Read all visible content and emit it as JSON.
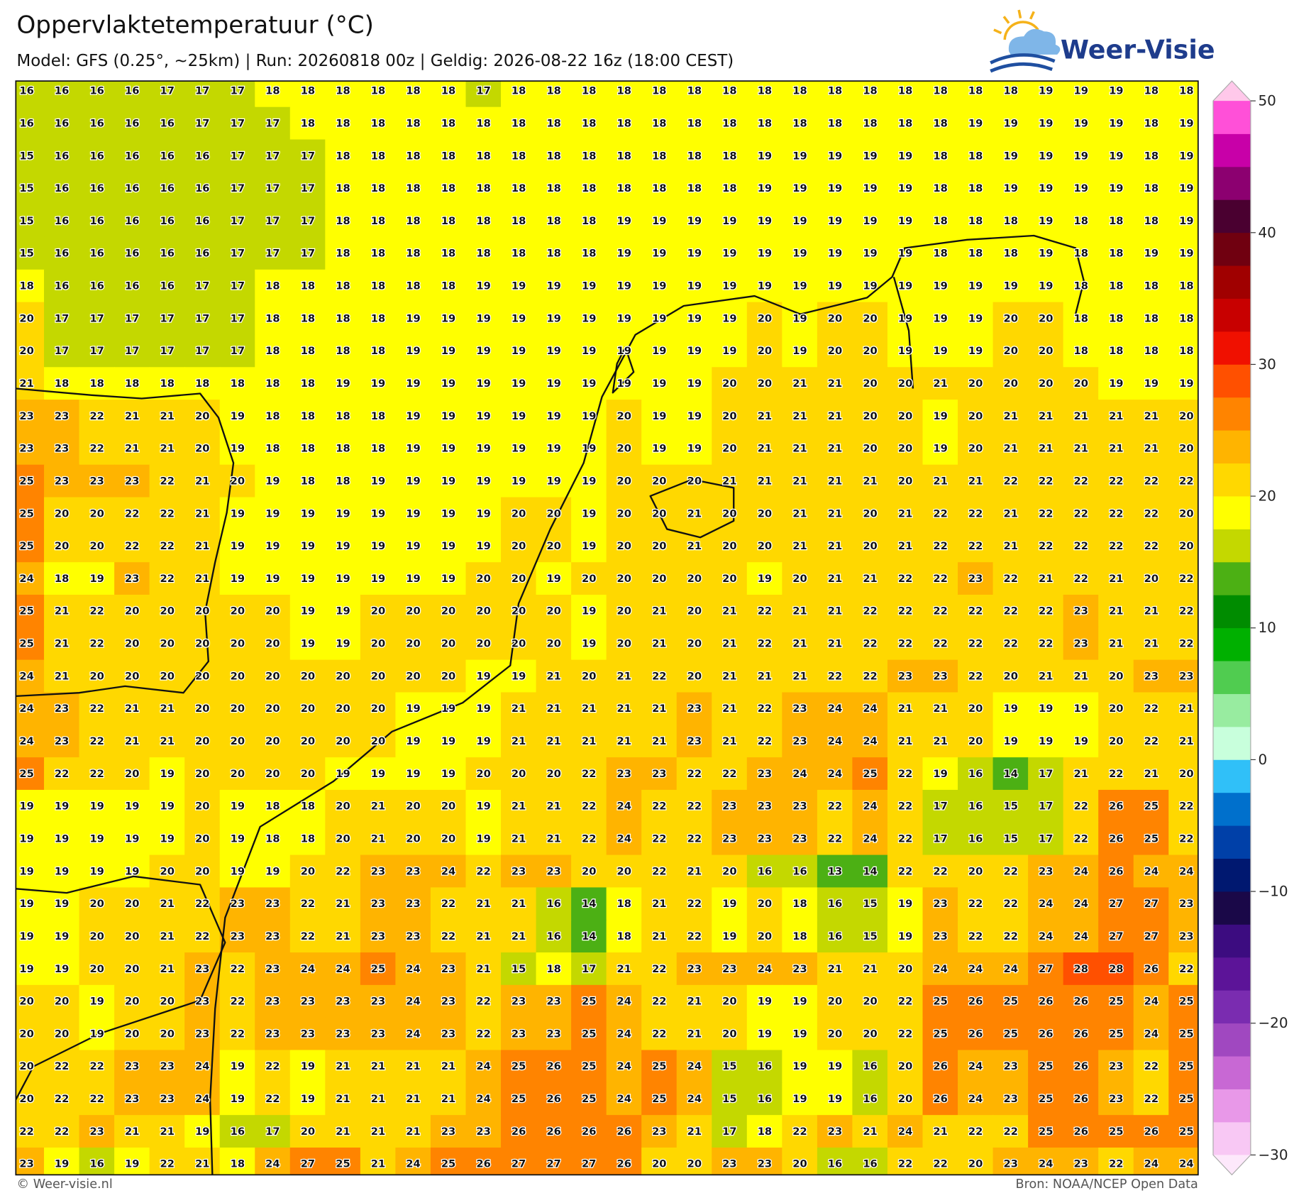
{
  "header": {
    "title": "Oppervlaktetemperatuur (°C)",
    "subtitle": "Model: GFS (0.25°, ~25km)  |  Run: 20260818 00z  |  Geldig: 2026-08-22 16z (18:00 CEST)"
  },
  "logo": {
    "text": "Weer-Visie"
  },
  "map": {
    "values": [
      [
        16,
        16,
        16,
        16,
        17,
        17,
        17,
        18,
        18,
        18,
        18,
        18,
        18,
        17,
        18,
        18,
        18,
        18,
        18,
        18,
        18,
        18,
        18,
        18,
        18,
        18,
        18,
        18,
        18,
        19,
        19,
        19,
        18,
        18
      ],
      [
        16,
        16,
        16,
        16,
        16,
        17,
        17,
        17,
        18,
        18,
        18,
        18,
        18,
        18,
        18,
        18,
        18,
        18,
        18,
        18,
        18,
        18,
        18,
        18,
        18,
        18,
        18,
        19,
        19,
        19,
        19,
        19,
        18,
        19
      ],
      [
        15,
        16,
        16,
        16,
        16,
        16,
        17,
        17,
        17,
        18,
        18,
        18,
        18,
        18,
        18,
        18,
        18,
        18,
        18,
        18,
        18,
        19,
        19,
        19,
        19,
        19,
        18,
        18,
        19,
        19,
        19,
        19,
        18,
        19
      ],
      [
        15,
        16,
        16,
        16,
        16,
        16,
        17,
        17,
        17,
        18,
        18,
        18,
        18,
        18,
        18,
        18,
        18,
        18,
        18,
        18,
        18,
        19,
        19,
        19,
        19,
        19,
        18,
        18,
        19,
        19,
        19,
        19,
        18,
        19
      ],
      [
        15,
        16,
        16,
        16,
        16,
        16,
        17,
        17,
        17,
        18,
        18,
        18,
        18,
        18,
        18,
        18,
        18,
        19,
        19,
        19,
        19,
        19,
        19,
        19,
        19,
        19,
        18,
        18,
        18,
        19,
        18,
        18,
        18,
        19
      ],
      [
        15,
        16,
        16,
        16,
        16,
        16,
        17,
        17,
        17,
        18,
        18,
        18,
        18,
        18,
        18,
        18,
        18,
        19,
        19,
        19,
        19,
        19,
        19,
        19,
        19,
        19,
        18,
        18,
        18,
        19,
        18,
        18,
        19,
        19
      ],
      [
        18,
        16,
        16,
        16,
        16,
        17,
        17,
        18,
        18,
        18,
        18,
        18,
        18,
        19,
        19,
        19,
        19,
        19,
        19,
        19,
        19,
        19,
        19,
        19,
        19,
        19,
        19,
        19,
        19,
        19,
        18,
        18,
        18,
        18
      ],
      [
        20,
        17,
        17,
        17,
        17,
        17,
        17,
        18,
        18,
        18,
        18,
        19,
        19,
        19,
        19,
        19,
        19,
        19,
        19,
        19,
        19,
        20,
        19,
        20,
        20,
        19,
        19,
        19,
        20,
        20,
        18,
        18,
        18,
        18
      ],
      [
        20,
        17,
        17,
        17,
        17,
        17,
        17,
        18,
        18,
        18,
        18,
        19,
        19,
        19,
        19,
        19,
        19,
        19,
        19,
        19,
        19,
        20,
        19,
        20,
        20,
        19,
        19,
        19,
        20,
        20,
        18,
        18,
        18,
        18
      ],
      [
        21,
        18,
        18,
        18,
        18,
        18,
        18,
        18,
        18,
        19,
        19,
        19,
        19,
        19,
        19,
        19,
        19,
        19,
        19,
        19,
        20,
        20,
        21,
        21,
        20,
        20,
        21,
        20,
        20,
        20,
        20,
        19,
        19,
        19
      ],
      [
        23,
        23,
        22,
        21,
        21,
        20,
        19,
        18,
        18,
        18,
        18,
        19,
        19,
        19,
        19,
        19,
        19,
        20,
        19,
        19,
        20,
        21,
        21,
        21,
        20,
        20,
        19,
        20,
        21,
        21,
        21,
        21,
        21,
        20
      ],
      [
        23,
        23,
        22,
        21,
        21,
        20,
        19,
        18,
        18,
        18,
        18,
        19,
        19,
        19,
        19,
        19,
        19,
        20,
        19,
        19,
        20,
        21,
        21,
        21,
        20,
        20,
        19,
        20,
        21,
        21,
        21,
        21,
        21,
        20
      ],
      [
        25,
        23,
        23,
        23,
        22,
        21,
        20,
        19,
        18,
        18,
        19,
        19,
        19,
        19,
        19,
        19,
        19,
        20,
        20,
        20,
        21,
        21,
        21,
        21,
        21,
        20,
        21,
        21,
        22,
        22,
        22,
        22,
        22,
        22
      ],
      [
        25,
        20,
        20,
        22,
        22,
        21,
        19,
        19,
        19,
        19,
        19,
        19,
        19,
        19,
        20,
        20,
        19,
        20,
        20,
        21,
        20,
        20,
        21,
        21,
        20,
        21,
        22,
        22,
        21,
        22,
        22,
        22,
        22,
        20
      ],
      [
        25,
        20,
        20,
        22,
        22,
        21,
        19,
        19,
        19,
        19,
        19,
        19,
        19,
        19,
        20,
        20,
        19,
        20,
        20,
        21,
        20,
        20,
        21,
        21,
        20,
        21,
        22,
        22,
        21,
        22,
        22,
        22,
        22,
        20
      ],
      [
        24,
        18,
        19,
        23,
        22,
        21,
        19,
        19,
        19,
        19,
        19,
        19,
        19,
        20,
        20,
        19,
        20,
        20,
        20,
        20,
        20,
        19,
        20,
        21,
        21,
        22,
        22,
        23,
        22,
        21,
        22,
        21,
        20,
        22
      ],
      [
        25,
        21,
        22,
        20,
        20,
        20,
        20,
        20,
        19,
        19,
        20,
        20,
        20,
        20,
        20,
        20,
        19,
        20,
        21,
        20,
        21,
        22,
        21,
        21,
        22,
        22,
        22,
        22,
        22,
        22,
        23,
        21,
        21,
        22
      ],
      [
        25,
        21,
        22,
        20,
        20,
        20,
        20,
        20,
        19,
        19,
        20,
        20,
        20,
        20,
        20,
        20,
        19,
        20,
        21,
        20,
        21,
        22,
        21,
        21,
        22,
        22,
        22,
        22,
        22,
        22,
        23,
        21,
        21,
        22
      ],
      [
        24,
        21,
        20,
        20,
        20,
        20,
        20,
        20,
        20,
        20,
        20,
        20,
        20,
        19,
        19,
        21,
        20,
        21,
        22,
        20,
        21,
        21,
        21,
        22,
        22,
        23,
        23,
        22,
        20,
        21,
        21,
        20,
        23,
        23
      ],
      [
        24,
        23,
        22,
        21,
        21,
        20,
        20,
        20,
        20,
        20,
        20,
        19,
        19,
        19,
        21,
        21,
        21,
        21,
        21,
        23,
        21,
        22,
        23,
        24,
        24,
        21,
        21,
        20,
        19,
        19,
        19,
        20,
        22,
        21
      ],
      [
        24,
        23,
        22,
        21,
        21,
        20,
        20,
        20,
        20,
        20,
        20,
        19,
        19,
        19,
        21,
        21,
        21,
        21,
        21,
        23,
        21,
        22,
        23,
        24,
        24,
        21,
        21,
        20,
        19,
        19,
        19,
        20,
        22,
        21
      ],
      [
        25,
        22,
        22,
        20,
        19,
        20,
        20,
        20,
        20,
        19,
        19,
        19,
        19,
        20,
        20,
        20,
        22,
        23,
        23,
        22,
        22,
        23,
        24,
        24,
        25,
        22,
        19,
        16,
        14,
        17,
        21,
        22,
        21,
        20
      ],
      [
        19,
        19,
        19,
        19,
        19,
        20,
        19,
        18,
        18,
        20,
        21,
        20,
        20,
        19,
        21,
        21,
        22,
        24,
        22,
        22,
        23,
        23,
        23,
        22,
        24,
        22,
        17,
        16,
        15,
        17,
        22,
        26,
        25,
        22
      ],
      [
        19,
        19,
        19,
        19,
        19,
        20,
        19,
        18,
        18,
        20,
        21,
        20,
        20,
        19,
        21,
        21,
        22,
        24,
        22,
        22,
        23,
        23,
        23,
        22,
        24,
        22,
        17,
        16,
        15,
        17,
        22,
        26,
        25,
        22
      ],
      [
        19,
        19,
        19,
        19,
        20,
        20,
        19,
        19,
        20,
        22,
        23,
        23,
        24,
        22,
        23,
        23,
        20,
        20,
        22,
        21,
        20,
        16,
        16,
        13,
        14,
        22,
        22,
        20,
        22,
        23,
        24,
        26,
        24,
        24
      ],
      [
        19,
        19,
        20,
        20,
        21,
        22,
        23,
        23,
        22,
        21,
        23,
        23,
        22,
        21,
        21,
        16,
        14,
        18,
        21,
        22,
        19,
        20,
        18,
        16,
        15,
        19,
        23,
        22,
        22,
        24,
        24,
        27,
        27,
        23
      ],
      [
        19,
        19,
        20,
        20,
        21,
        22,
        23,
        23,
        22,
        21,
        23,
        23,
        22,
        21,
        21,
        16,
        14,
        18,
        21,
        22,
        19,
        20,
        18,
        16,
        15,
        19,
        23,
        22,
        22,
        24,
        24,
        27,
        27,
        23
      ],
      [
        19,
        19,
        20,
        20,
        21,
        23,
        22,
        23,
        24,
        24,
        25,
        24,
        23,
        21,
        15,
        18,
        17,
        21,
        22,
        23,
        23,
        24,
        23,
        21,
        21,
        20,
        24,
        24,
        24,
        27,
        28,
        28,
        26,
        22
      ],
      [
        20,
        20,
        19,
        20,
        20,
        23,
        22,
        23,
        23,
        23,
        23,
        24,
        23,
        22,
        23,
        23,
        25,
        24,
        22,
        21,
        20,
        19,
        19,
        20,
        20,
        22,
        25,
        26,
        25,
        26,
        26,
        25,
        24,
        25
      ],
      [
        20,
        20,
        19,
        20,
        20,
        23,
        22,
        23,
        23,
        23,
        23,
        24,
        23,
        22,
        23,
        23,
        25,
        24,
        22,
        21,
        20,
        19,
        19,
        20,
        20,
        22,
        25,
        26,
        25,
        26,
        26,
        25,
        24,
        25
      ],
      [
        20,
        22,
        22,
        23,
        23,
        24,
        19,
        22,
        19,
        21,
        21,
        21,
        21,
        24,
        25,
        26,
        25,
        24,
        25,
        24,
        15,
        16,
        19,
        19,
        16,
        20,
        26,
        24,
        23,
        25,
        26,
        23,
        22,
        25
      ],
      [
        20,
        22,
        22,
        23,
        23,
        24,
        19,
        22,
        19,
        21,
        21,
        21,
        21,
        24,
        25,
        26,
        25,
        24,
        25,
        24,
        15,
        16,
        19,
        19,
        16,
        20,
        26,
        24,
        23,
        25,
        26,
        23,
        22,
        25
      ],
      [
        22,
        22,
        23,
        21,
        21,
        19,
        16,
        17,
        20,
        21,
        21,
        21,
        23,
        23,
        26,
        26,
        26,
        26,
        23,
        21,
        17,
        18,
        22,
        23,
        21,
        24,
        21,
        22,
        22,
        25,
        26,
        25,
        26,
        25
      ],
      [
        23,
        19,
        16,
        19,
        22,
        21,
        18,
        24,
        27,
        25,
        21,
        24,
        25,
        26,
        27,
        27,
        27,
        26,
        20,
        20,
        23,
        23,
        20,
        16,
        16,
        22,
        22,
        20,
        23,
        24,
        23,
        22,
        24,
        24
      ]
    ]
  },
  "colorbar": {
    "lim": [
      -30,
      50
    ],
    "ticks": [
      50,
      40,
      30,
      20,
      10,
      0,
      {
        "value": -10,
        "label": "−10"
      },
      {
        "value": -20,
        "label": "−20"
      },
      {
        "value": -30,
        "label": "−30"
      }
    ],
    "colors": [
      "#f8c8f4",
      "#e898e8",
      "#c868d4",
      "#a048c0",
      "#7a2cb0",
      "#5c1498",
      "#3c0c80",
      "#1a0848",
      "#001870",
      "#0040a8",
      "#0070cc",
      "#30c0f8",
      "#c8ffdc",
      "#98eca0",
      "#50cc50",
      "#00b000",
      "#008c00",
      "#4cb014",
      "#c4d800",
      "#ffff00",
      "#ffd800",
      "#ffb400",
      "#ff8400",
      "#ff5000",
      "#f01000",
      "#c80000",
      "#a00000",
      "#700010",
      "#4a0030",
      "#8c0070",
      "#c800a8",
      "#ff50d8"
    ],
    "over": "#ffc8ea",
    "under": "#fde8fb"
  },
  "footer": {
    "left": "© Weer-visie.nl",
    "right": "Bron: NOAA/NCEP Open Data"
  }
}
